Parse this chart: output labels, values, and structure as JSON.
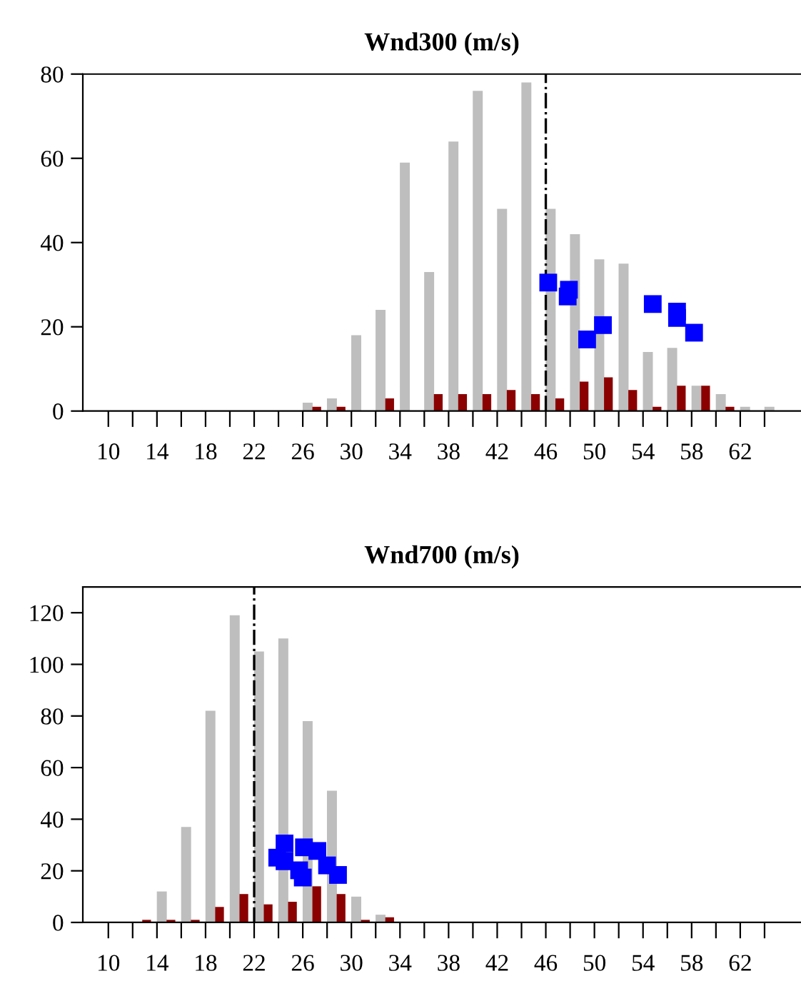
{
  "chart_data": [
    {
      "type": "bar",
      "title": "Wnd300 (m/s)",
      "series": [
        {
          "color": "#bebebe",
          "x": [
            10.4,
            12.4,
            14.4,
            16.4,
            18.4,
            20.4,
            22.4,
            24.4,
            26.4,
            28.4,
            30.4,
            32.4,
            34.4,
            36.4,
            38.4,
            40.4,
            42.4,
            44.4,
            46.4,
            48.4,
            50.4,
            52.4,
            54.4,
            56.4,
            58.4,
            60.4,
            62.4,
            64.4
          ],
          "values": [
            0,
            0,
            0,
            0,
            0,
            0,
            0,
            0,
            2,
            3,
            18,
            24,
            59,
            33,
            64,
            76,
            48,
            78,
            48,
            42,
            36,
            35,
            14,
            15,
            6,
            4,
            1,
            1
          ]
        },
        {
          "color": "#8b0000",
          "x": [
            11.15,
            13.15,
            15.15,
            17.15,
            19.15,
            21.15,
            23.15,
            25.15,
            27.15,
            29.15,
            31.15,
            33.15,
            35.15,
            37.15,
            39.15,
            41.15,
            43.15,
            45.15,
            47.15,
            49.15,
            51.15,
            53.15,
            55.15,
            57.15,
            59.15,
            61.15,
            63.15,
            65.15
          ],
          "values": [
            0,
            0,
            0,
            0,
            0,
            0,
            0,
            0,
            1,
            1,
            0,
            3,
            0,
            4,
            4,
            4,
            5,
            4,
            3,
            7,
            8,
            5,
            1,
            6,
            6,
            1,
            0,
            0
          ]
        },
        {
          "type": "scatter",
          "color": "#0000ff",
          "marker": "square",
          "x": [
            46.2,
            47.9,
            47.8,
            49.4,
            50.7,
            54.8,
            56.8,
            56.8,
            58.2
          ],
          "values": [
            30.5,
            28.8,
            27.2,
            17.0,
            20.4,
            25.4,
            23.6,
            22.1,
            18.6
          ]
        }
      ],
      "xlim": [
        7.9,
        67
      ],
      "ylim": [
        0,
        80
      ],
      "yticks": [
        0,
        20,
        40,
        60,
        80
      ],
      "xticks": [
        10,
        {
          "value": 12,
          "label": null
        },
        14,
        {
          "value": 16,
          "label": null
        },
        18,
        {
          "value": 20,
          "label": null
        },
        22,
        {
          "value": 24,
          "label": null
        },
        26,
        {
          "value": 28,
          "label": null
        },
        30,
        {
          "value": 32,
          "label": null
        },
        34,
        {
          "value": 36,
          "label": null
        },
        38,
        {
          "value": 40,
          "label": null
        },
        42,
        {
          "value": 44,
          "label": null
        },
        46,
        {
          "value": 48,
          "label": null
        },
        50,
        {
          "value": 52,
          "label": null
        },
        54,
        {
          "value": 56,
          "label": null
        },
        58,
        {
          "value": 60,
          "label": null
        },
        62,
        {
          "value": 64,
          "label": null
        }
      ],
      "ref_lines": [
        {
          "axis": "x",
          "value": 46,
          "color": "#000000",
          "line_style": "dashdot"
        }
      ],
      "grid": false,
      "legend": false
    },
    {
      "type": "bar",
      "title": "Wnd700 (m/s)",
      "series": [
        {
          "color": "#bebebe",
          "x": [
            10.4,
            12.4,
            14.4,
            16.4,
            18.4,
            20.4,
            22.4,
            24.4,
            26.4,
            28.4,
            30.4,
            32.4,
            34.4,
            36.4,
            38.4,
            40.4,
            42.4,
            44.4,
            46.4,
            48.4,
            50.4,
            52.4,
            54.4,
            56.4,
            58.4,
            60.4,
            62.4,
            64.4
          ],
          "values": [
            0,
            0,
            12,
            37,
            82,
            119,
            105,
            110,
            78,
            51,
            10,
            3,
            0,
            0,
            0,
            0,
            0,
            0,
            0,
            0,
            0,
            0,
            0,
            0,
            0,
            0,
            0,
            0
          ]
        },
        {
          "color": "#8b0000",
          "x": [
            11.15,
            13.15,
            15.15,
            17.15,
            19.15,
            21.15,
            23.15,
            25.15,
            27.15,
            29.15,
            31.15,
            33.15,
            35.15,
            37.15,
            39.15,
            41.15,
            43.15,
            45.15,
            47.15,
            49.15,
            51.15,
            53.15,
            55.15,
            57.15,
            59.15,
            61.15,
            63.15,
            65.15
          ],
          "values": [
            0,
            1,
            1,
            1,
            6,
            11,
            7,
            8,
            14,
            11,
            1,
            2,
            0,
            0,
            0,
            0,
            0,
            0,
            0,
            0,
            0,
            0,
            0,
            0,
            0,
            0,
            0,
            0
          ]
        },
        {
          "type": "scatter",
          "color": "#0000ff",
          "marker": "square",
          "x": [
            24.5,
            23.9,
            24.5,
            26.1,
            27.2,
            25.7,
            26.0,
            28.0,
            28.9
          ],
          "values": [
            30.6,
            25.1,
            23.7,
            29.1,
            27.7,
            20.2,
            17.4,
            22.1,
            18.4
          ]
        }
      ],
      "xlim": [
        7.9,
        67
      ],
      "ylim": [
        0,
        130
      ],
      "yticks": [
        0,
        20,
        40,
        60,
        80,
        100,
        120
      ],
      "xticks": [
        10,
        {
          "value": 12,
          "label": null
        },
        14,
        {
          "value": 16,
          "label": null
        },
        18,
        {
          "value": 20,
          "label": null
        },
        22,
        {
          "value": 24,
          "label": null
        },
        26,
        {
          "value": 28,
          "label": null
        },
        30,
        {
          "value": 32,
          "label": null
        },
        34,
        {
          "value": 36,
          "label": null
        },
        38,
        {
          "value": 40,
          "label": null
        },
        42,
        {
          "value": 44,
          "label": null
        },
        46,
        {
          "value": 48,
          "label": null
        },
        50,
        {
          "value": 52,
          "label": null
        },
        54,
        {
          "value": 56,
          "label": null
        },
        58,
        {
          "value": 60,
          "label": null
        },
        62,
        {
          "value": 64,
          "label": null
        }
      ],
      "ref_lines": [
        {
          "axis": "x",
          "value": 22,
          "color": "#000000",
          "line_style": "dashdot"
        }
      ],
      "grid": false,
      "legend": false
    }
  ]
}
